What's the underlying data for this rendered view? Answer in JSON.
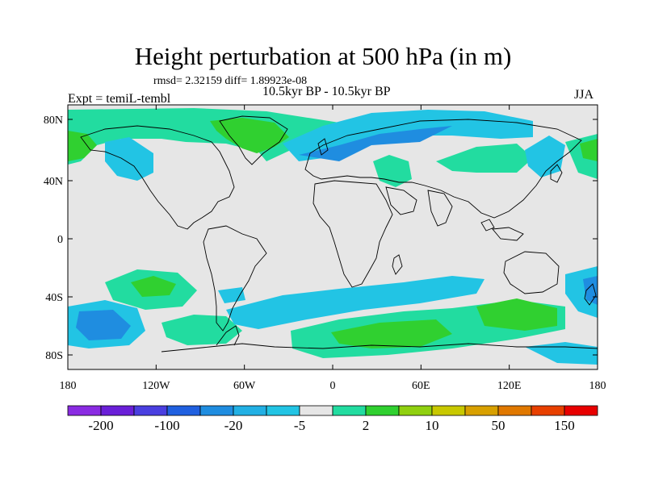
{
  "title": "Height perturbation at 500 hPa (in m)",
  "stats": "rmsd= 2.32159  diff= 1.89923e-08",
  "period": "10.5kyr BP - 10.5kyr BP",
  "experiment": "Expt = temiL-tembl",
  "season": "JJA",
  "map": {
    "lat_labels": [
      "80N",
      "40N",
      "0",
      "40S",
      "80S"
    ],
    "lon_labels": [
      "180",
      "120W",
      "60W",
      "0",
      "60E",
      "120E",
      "180"
    ],
    "background_color": "#e6e6e6"
  },
  "legend": {
    "colors": [
      "#8a2be2",
      "#6a1fd8",
      "#4a3fe0",
      "#2060e0",
      "#1f8de0",
      "#22b0e4",
      "#22c4e4",
      "#e6e6e6",
      "#22dca0",
      "#30d030",
      "#90d010",
      "#c8c800",
      "#d8a000",
      "#e07800",
      "#e84000",
      "#e80000"
    ],
    "labels": [
      "-200",
      "-100",
      "-20",
      "-5",
      "2",
      "10",
      "50",
      "150"
    ]
  },
  "field": {
    "colors": {
      "light_blue": "#22c4e4",
      "blue": "#1f8de0",
      "teal": "#22dca0",
      "green": "#30d030"
    }
  }
}
